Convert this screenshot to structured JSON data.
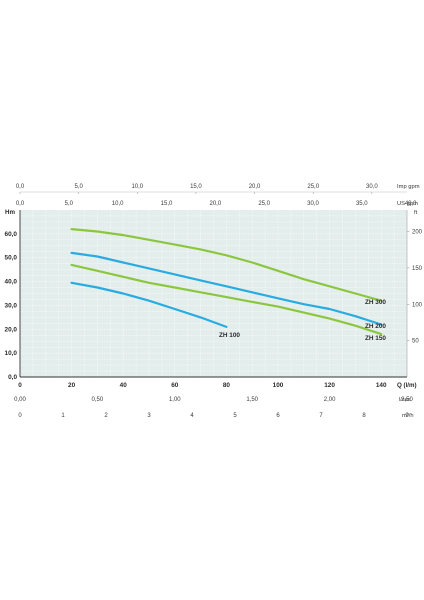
{
  "chart_data": {
    "type": "line",
    "xlabel": "Q (l/m)",
    "ylabel": "Hm",
    "xlim": [
      0,
      150
    ],
    "ylim": [
      0,
      70
    ],
    "x_ticks": [
      "0",
      "20",
      "40",
      "60",
      "80",
      "100",
      "120",
      "140"
    ],
    "y_ticks": [
      "0,0",
      "10,0",
      "20,0",
      "30,0",
      "40,0",
      "50,0",
      "60,0"
    ],
    "grid": true,
    "series": [
      {
        "name": "ZH 300",
        "color": "#8cc63f",
        "x": [
          20,
          30,
          40,
          50,
          60,
          70,
          80,
          90,
          100,
          110,
          120,
          130,
          140
        ],
        "y": [
          62,
          61,
          59.5,
          57.5,
          55.5,
          53.5,
          51,
          48,
          44.5,
          41,
          38,
          35,
          32
        ]
      },
      {
        "name": "ZH 200",
        "color": "#29abe2",
        "x": [
          20,
          30,
          40,
          50,
          60,
          70,
          80,
          90,
          100,
          110,
          120,
          130,
          140
        ],
        "y": [
          52,
          50.5,
          48,
          45.5,
          43,
          40.5,
          38,
          35.5,
          33,
          30.5,
          28.5,
          25.5,
          22
        ]
      },
      {
        "name": "ZH 150",
        "color": "#8cc63f",
        "x": [
          20,
          30,
          40,
          50,
          60,
          70,
          80,
          90,
          100,
          110,
          120,
          130,
          140
        ],
        "y": [
          47,
          44.5,
          42,
          39.5,
          37.5,
          35.5,
          33.5,
          31.5,
          29.5,
          27,
          24.5,
          21.5,
          18
        ]
      },
      {
        "name": "ZH 100",
        "color": "#29abe2",
        "x": [
          20,
          30,
          40,
          50,
          60,
          70,
          80
        ],
        "y": [
          39.5,
          37.5,
          35,
          32,
          28.5,
          25,
          21
        ]
      }
    ]
  },
  "axes": {
    "imp_gpm": {
      "unit": "Imp gpm",
      "ticks": [
        {
          "label": "0,0",
          "q": 0
        },
        {
          "label": "5,0",
          "q": 22.73
        },
        {
          "label": "10,0",
          "q": 45.46
        },
        {
          "label": "15,0",
          "q": 68.19
        },
        {
          "label": "20,0",
          "q": 90.92
        },
        {
          "label": "25,0",
          "q": 113.65
        },
        {
          "label": "30,0",
          "q": 136.38
        }
      ]
    },
    "us_gpm": {
      "unit": "US gpm",
      "ticks": [
        {
          "label": "0,0",
          "q": 0
        },
        {
          "label": "5,0",
          "q": 18.93
        },
        {
          "label": "10,0",
          "q": 37.85
        },
        {
          "label": "15,0",
          "q": 56.78
        },
        {
          "label": "20,0",
          "q": 75.71
        },
        {
          "label": "25,0",
          "q": 94.64
        },
        {
          "label": "30,0",
          "q": 113.56
        },
        {
          "label": "35,0",
          "q": 132.49
        },
        {
          "label": "40,0",
          "q": 151.42
        }
      ]
    },
    "l_sec": {
      "unit": "l/sec",
      "ticks": [
        {
          "label": "0,00",
          "q": 0
        },
        {
          "label": "0,50",
          "q": 30
        },
        {
          "label": "1,00",
          "q": 60
        },
        {
          "label": "1,50",
          "q": 90
        },
        {
          "label": "2,00",
          "q": 120
        },
        {
          "label": "2,50",
          "q": 150
        }
      ]
    },
    "m3h": {
      "unit": "m³/h",
      "ticks": [
        {
          "label": "0",
          "q": 0
        },
        {
          "label": "1",
          "q": 16.67
        },
        {
          "label": "2",
          "q": 33.33
        },
        {
          "label": "3",
          "q": 50
        },
        {
          "label": "4",
          "q": 66.67
        },
        {
          "label": "5",
          "q": 83.33
        },
        {
          "label": "6",
          "q": 100
        },
        {
          "label": "7",
          "q": 116.67
        },
        {
          "label": "8",
          "q": 133.33
        },
        {
          "label": "9",
          "q": 150
        }
      ]
    },
    "ft": {
      "unit": "ft",
      "ticks": [
        {
          "label": "50",
          "m": 15.24
        },
        {
          "label": "100",
          "m": 30.48
        },
        {
          "label": "150",
          "m": 45.72
        },
        {
          "label": "200",
          "m": 60.96
        }
      ]
    }
  }
}
